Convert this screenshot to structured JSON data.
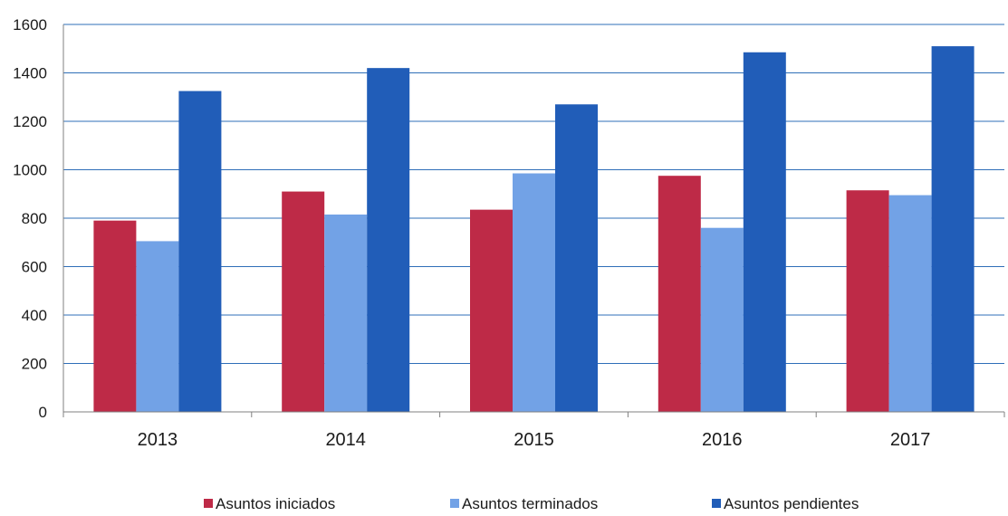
{
  "chart_data": {
    "type": "bar",
    "categories": [
      "2013",
      "2014",
      "2015",
      "2016",
      "2017"
    ],
    "series": [
      {
        "name": "Asuntos iniciados",
        "color": "#be2a47",
        "values": [
          790,
          910,
          835,
          975,
          915
        ]
      },
      {
        "name": "Asuntos terminados",
        "color": "#72a2e6",
        "values": [
          705,
          815,
          985,
          760,
          895
        ]
      },
      {
        "name": "Asuntos pendientes",
        "color": "#215db8",
        "values": [
          1325,
          1420,
          1270,
          1485,
          1510
        ]
      }
    ],
    "ylim": [
      0,
      1600
    ],
    "yticks": [
      0,
      200,
      400,
      600,
      800,
      1000,
      1200,
      1400,
      1600
    ],
    "grid": true,
    "gridColor": "#2f6fb8",
    "legend": "bottom",
    "title": "",
    "xlabel": "",
    "ylabel": ""
  }
}
